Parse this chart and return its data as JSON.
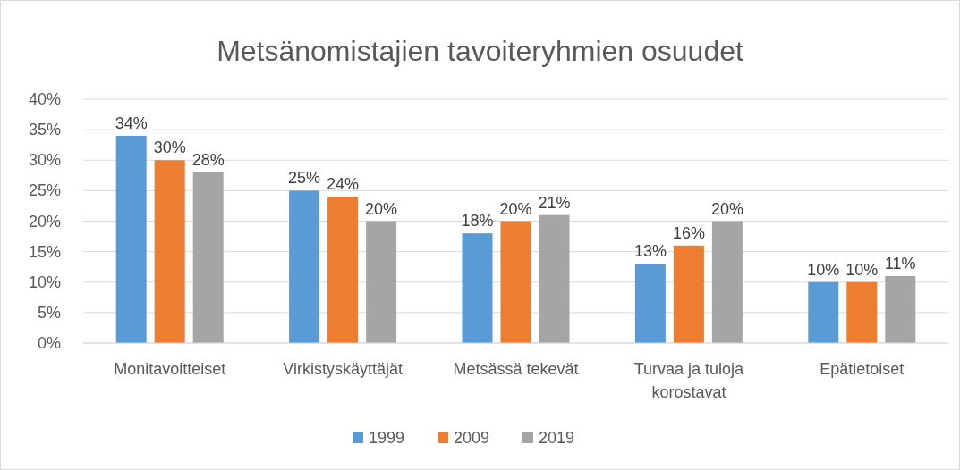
{
  "chart_data": {
    "type": "bar",
    "title": "Metsänomistajien tavoiteryhmien osuudet",
    "categories": [
      "Monitavoitteiset",
      "Virkistyskäyttäjät",
      "Metsässä tekevät",
      "Turvaa ja tuloja korostavat",
      "Epätietoiset"
    ],
    "series": [
      {
        "name": "1999",
        "color": "#5b9bd5",
        "values": [
          34,
          25,
          18,
          13,
          10
        ],
        "value_labels": [
          "34%",
          "25%",
          "18%",
          "13%",
          "10%"
        ]
      },
      {
        "name": "2009",
        "color": "#ed7d31",
        "values": [
          30,
          24,
          20,
          16,
          10
        ],
        "value_labels": [
          "30%",
          "24%",
          "20%",
          "16%",
          "10%"
        ]
      },
      {
        "name": "2019",
        "color": "#a5a5a5",
        "values": [
          28,
          20,
          21,
          20,
          11
        ],
        "value_labels": [
          "28%",
          "20%",
          "21%",
          "20%",
          "11%"
        ]
      }
    ],
    "ylim": [
      0,
      40
    ],
    "yticks": [
      {
        "value": 0,
        "label": "0%"
      },
      {
        "value": 5,
        "label": "5%"
      },
      {
        "value": 10,
        "label": "10%"
      },
      {
        "value": 15,
        "label": "15%"
      },
      {
        "value": 20,
        "label": "20%"
      },
      {
        "value": 25,
        "label": "25%"
      },
      {
        "value": 30,
        "label": "30%"
      },
      {
        "value": 35,
        "label": "35%"
      },
      {
        "value": 40,
        "label": "40%"
      }
    ],
    "grid": "y",
    "legend": "bottom"
  }
}
